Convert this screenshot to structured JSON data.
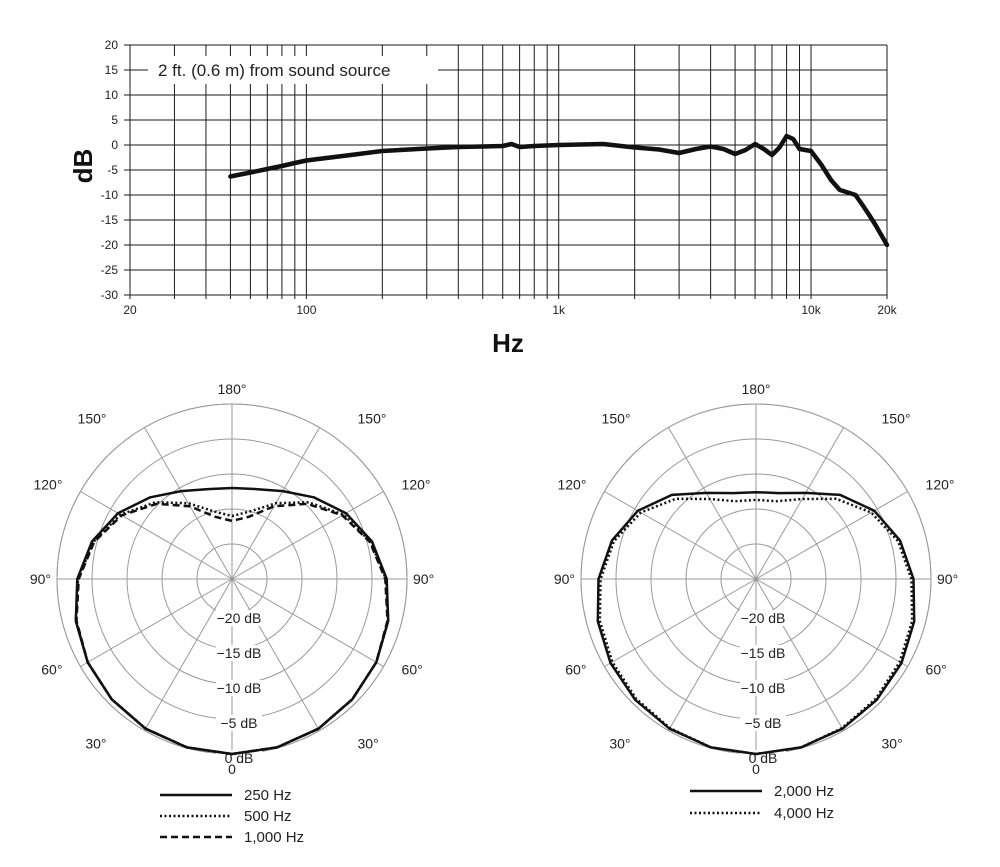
{
  "chart_data": [
    {
      "type": "line",
      "scale": "log-x",
      "annotation": "2 ft. (0.6 m) from sound source",
      "xlabel": "Hz",
      "ylabel": "dB",
      "xlim": [
        20,
        20000
      ],
      "ylim": [
        -30,
        20
      ],
      "x_tick_labels": [
        {
          "value": 20,
          "label": "20"
        },
        {
          "value": 100,
          "label": "100"
        },
        {
          "value": 1000,
          "label": "1k"
        },
        {
          "value": 10000,
          "label": "10k"
        },
        {
          "value": 20000,
          "label": "20k"
        }
      ],
      "y_ticks": [
        20,
        15,
        10,
        5,
        0,
        -5,
        -10,
        -15,
        -20,
        -25,
        -30
      ],
      "grid": true,
      "series": [
        {
          "x": [
            50,
            60,
            70,
            80,
            90,
            100,
            120,
            150,
            200,
            300,
            400,
            500,
            600,
            650,
            700,
            800,
            1000,
            1500,
            2000,
            2500,
            3000,
            3500,
            4000,
            4500,
            5000,
            5500,
            6000,
            6500,
            7000,
            7500,
            8000,
            8500,
            9000,
            10000,
            11000,
            12000,
            13000,
            14000,
            15000,
            16000,
            17000,
            18000,
            20000
          ],
          "y": [
            -6.3,
            -5.5,
            -4.8,
            -4.2,
            -3.6,
            -3.1,
            -2.6,
            -2.0,
            -1.2,
            -0.7,
            -0.4,
            -0.3,
            -0.2,
            0.2,
            -0.4,
            -0.2,
            0.0,
            0.2,
            -0.5,
            -0.9,
            -1.6,
            -0.8,
            -0.3,
            -0.8,
            -1.8,
            -1.0,
            0.2,
            -0.8,
            -2.0,
            -0.5,
            1.8,
            1.2,
            -0.8,
            -1.2,
            -4.0,
            -7.0,
            -9.0,
            -9.5,
            -10.0,
            -12.0,
            -14.0,
            -16.0,
            -20.0
          ]
        }
      ]
    },
    {
      "type": "polar",
      "angle_labels": [
        "180°",
        "150°",
        "150°",
        "120°",
        "120°",
        "90°",
        "90°",
        "60°",
        "60°",
        "30°",
        "30°",
        "0"
      ],
      "ring_labels": [
        "−20 dB",
        "−15 dB",
        "−10 dB",
        "−5 dB",
        "0 dB"
      ],
      "ring_values_db": [
        -20,
        -15,
        -10,
        -5,
        0
      ],
      "series": [
        {
          "name": "250 Hz",
          "style": "solid",
          "angles_deg": [
            0,
            15,
            30,
            45,
            60,
            75,
            90,
            105,
            120,
            135,
            150,
            165,
            180
          ],
          "db": [
            0,
            -0.1,
            -0.3,
            -0.7,
            -1.2,
            -1.9,
            -2.9,
            -4.3,
            -6.2,
            -8.5,
            -10.5,
            -11.7,
            -12.0
          ]
        },
        {
          "name": "500 Hz",
          "style": "dotted",
          "angles_deg": [
            0,
            15,
            30,
            45,
            60,
            75,
            90,
            105,
            120,
            135,
            150,
            165,
            180
          ],
          "db": [
            0,
            -0.1,
            -0.3,
            -0.7,
            -1.2,
            -1.9,
            -3.0,
            -4.5,
            -6.6,
            -9.5,
            -12.5,
            -15.0,
            -16.0
          ]
        },
        {
          "name": "1,000 Hz",
          "style": "dashed",
          "angles_deg": [
            0,
            15,
            30,
            45,
            60,
            75,
            90,
            105,
            120,
            135,
            150,
            165,
            180
          ],
          "db": [
            0,
            -0.1,
            -0.3,
            -0.7,
            -1.2,
            -2.0,
            -3.1,
            -4.6,
            -6.8,
            -9.8,
            -13.0,
            -15.8,
            -16.7
          ]
        }
      ]
    },
    {
      "type": "polar",
      "angle_labels": [
        "180°",
        "150°",
        "150°",
        "120°",
        "120°",
        "90°",
        "90°",
        "60°",
        "60°",
        "30°",
        "30°",
        "0"
      ],
      "ring_labels": [
        "−20 dB",
        "−15 dB",
        "−10 dB",
        "−5 dB",
        "0 dB"
      ],
      "ring_values_db": [
        -20,
        -15,
        -10,
        -5,
        0
      ],
      "series": [
        {
          "name": "2,000 Hz",
          "style": "solid",
          "angles_deg": [
            0,
            15,
            30,
            45,
            60,
            75,
            90,
            105,
            120,
            135,
            150,
            165,
            180
          ],
          "db": [
            0,
            -0.1,
            -0.3,
            -0.6,
            -1.0,
            -1.6,
            -2.5,
            -3.7,
            -5.5,
            -8.0,
            -10.8,
            -12.3,
            -12.6
          ]
        },
        {
          "name": "4,000 Hz",
          "style": "dotted",
          "angles_deg": [
            0,
            15,
            30,
            45,
            60,
            75,
            90,
            105,
            120,
            135,
            150,
            165,
            180
          ],
          "db": [
            0,
            -0.1,
            -0.4,
            -0.8,
            -1.3,
            -1.9,
            -2.8,
            -4.0,
            -6.0,
            -8.8,
            -11.8,
            -13.5,
            -13.7
          ]
        }
      ]
    }
  ]
}
